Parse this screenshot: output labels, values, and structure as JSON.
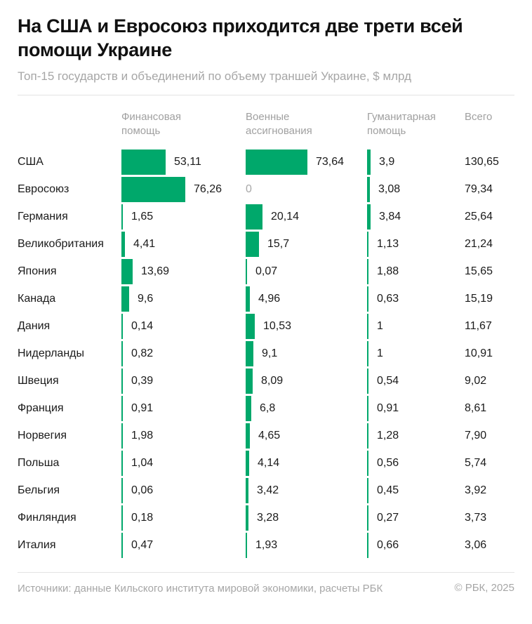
{
  "header": {
    "title": "На США и Евросоюз приходится две трети всей помощи Украине",
    "subtitle": "Топ-15 государств и объединений по объему траншей Украине, $ млрд"
  },
  "columns": {
    "financial": "Финансовая помощь",
    "military": "Военные ассигнования",
    "humanitarian": "Гуманитарная помощь",
    "total": "Всего"
  },
  "rows": [
    {
      "country": "США",
      "financial": "53,11",
      "military": "73,64",
      "humanitarian": "3,9",
      "total": "130,65"
    },
    {
      "country": "Евросоюз",
      "financial": "76,26",
      "military": "0",
      "humanitarian": "3,08",
      "total": "79,34"
    },
    {
      "country": "Германия",
      "financial": "1,65",
      "military": "20,14",
      "humanitarian": "3,84",
      "total": "25,64"
    },
    {
      "country": "Великобритания",
      "financial": "4,41",
      "military": "15,7",
      "humanitarian": "1,13",
      "total": "21,24"
    },
    {
      "country": "Япония",
      "financial": "13,69",
      "military": "0,07",
      "humanitarian": "1,88",
      "total": "15,65"
    },
    {
      "country": "Канада",
      "financial": "9,6",
      "military": "4,96",
      "humanitarian": "0,63",
      "total": "15,19"
    },
    {
      "country": "Дания",
      "financial": "0,14",
      "military": "10,53",
      "humanitarian": "1",
      "total": "11,67"
    },
    {
      "country": "Нидерланды",
      "financial": "0,82",
      "military": "9,1",
      "humanitarian": "1",
      "total": "10,91"
    },
    {
      "country": "Швеция",
      "financial": "0,39",
      "military": "8,09",
      "humanitarian": "0,54",
      "total": "9,02"
    },
    {
      "country": "Франция",
      "financial": "0,91",
      "military": "6,8",
      "humanitarian": "0,91",
      "total": "8,61"
    },
    {
      "country": "Норвегия",
      "financial": "1,98",
      "military": "4,65",
      "humanitarian": "1,28",
      "total": "7,90"
    },
    {
      "country": "Польша",
      "financial": "1,04",
      "military": "4,14",
      "humanitarian": "0,56",
      "total": "5,74"
    },
    {
      "country": "Бельгия",
      "financial": "0,06",
      "military": "3,42",
      "humanitarian": "0,45",
      "total": "3,92"
    },
    {
      "country": "Финляндия",
      "financial": "0,18",
      "military": "3,28",
      "humanitarian": "0,27",
      "total": "3,73"
    },
    {
      "country": "Италия",
      "financial": "0,47",
      "military": "1,93",
      "humanitarian": "0,66",
      "total": "3,06"
    }
  ],
  "footer": {
    "source": "Источники: данные Кильского института мировой экономики, расчеты РБК",
    "copyright": "© РБК, 2025"
  },
  "colors": {
    "bar": "#00a86b",
    "title": "#111111",
    "muted": "#a6a6a6"
  },
  "chart_data": {
    "type": "bar",
    "title": "На США и Евросоюз приходится две трети всей помощи Украине",
    "subtitle": "Топ-15 государств и объединений по объему траншей Украине, $ млрд",
    "orientation": "horizontal",
    "categories": [
      "США",
      "Евросоюз",
      "Германия",
      "Великобритания",
      "Япония",
      "Канада",
      "Дания",
      "Нидерланды",
      "Швеция",
      "Франция",
      "Норвегия",
      "Польша",
      "Бельгия",
      "Финляндия",
      "Италия"
    ],
    "series": [
      {
        "name": "Финансовая помощь",
        "values": [
          53.11,
          76.26,
          1.65,
          4.41,
          13.69,
          9.6,
          0.14,
          0.82,
          0.39,
          0.91,
          1.98,
          1.04,
          0.06,
          0.18,
          0.47
        ]
      },
      {
        "name": "Военные ассигнования",
        "values": [
          73.64,
          0,
          20.14,
          15.7,
          0.07,
          4.96,
          10.53,
          9.1,
          8.09,
          6.8,
          4.65,
          4.14,
          3.42,
          3.28,
          1.93
        ]
      },
      {
        "name": "Гуманитарная помощь",
        "values": [
          3.9,
          3.08,
          3.84,
          1.13,
          1.88,
          0.63,
          1,
          1,
          0.54,
          0.91,
          1.28,
          0.56,
          0.45,
          0.27,
          0.66
        ]
      },
      {
        "name": "Всего",
        "values": [
          130.65,
          79.34,
          25.64,
          21.24,
          15.65,
          15.19,
          11.67,
          10.91,
          9.02,
          8.61,
          7.9,
          5.74,
          3.92,
          3.73,
          3.06
        ]
      }
    ],
    "xlabel": "",
    "ylabel": "$ млрд",
    "source": "Источники: данные Кильского института мировой экономики, расчеты РБК"
  }
}
